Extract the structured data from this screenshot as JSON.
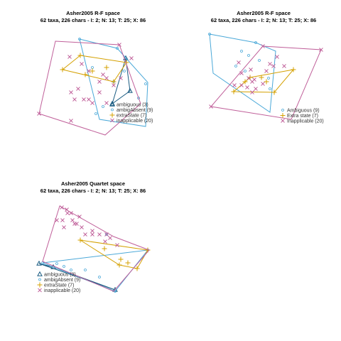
{
  "colors": {
    "ambiguous": "#1a5c82",
    "ambigAbsent": "#4aa8d8",
    "extraState": "#d4a000",
    "inapplicable": "#c0609a"
  },
  "chart_data": [
    {
      "type": "scatter",
      "title": "Asher2005 R-F space",
      "subtitle": "62 taxa, 226 chars - I: 2; N: 13; T: 25; X: 86",
      "x": [],
      "y": [],
      "grid": false,
      "legend": {
        "placement": "bottom-right",
        "entries": [
          "ambiguous (3)",
          "ambigAbsent (9)",
          "extraState (7)",
          "inapplicable (20)"
        ]
      },
      "series": [
        {
          "name": "ambiguous (3)",
          "symbol": "triangle",
          "points": [
            [
              177,
              82
            ],
            [
              183,
              128
            ],
            [
              158,
              146
            ]
          ],
          "hull": [
            [
              177,
              82
            ],
            [
              183,
              128
            ],
            [
              158,
              146
            ]
          ]
        },
        {
          "name": "ambigAbsent (9)",
          "symbol": "circle",
          "points": [
            [
              112,
              55
            ],
            [
              165,
              68
            ],
            [
              205,
              118
            ],
            [
              195,
              138
            ],
            [
              145,
              150
            ],
            [
              135,
              160
            ],
            [
              175,
              100
            ],
            [
              160,
              115
            ],
            [
              130,
              95
            ]
          ],
          "hull": [
            [
              112,
              55
            ],
            [
              165,
              68
            ],
            [
              208,
              116
            ],
            [
              205,
              178
            ],
            [
              140,
              168
            ]
          ]
        },
        {
          "name": "extraState (7)",
          "symbol": "plus",
          "points": [
            [
              88,
              98
            ],
            [
              113,
              78
            ],
            [
              178,
              88
            ],
            [
              160,
              115
            ],
            [
              130,
              100
            ],
            [
              150,
              95
            ],
            [
              120,
              105
            ]
          ],
          "hull": [
            [
              88,
              98
            ],
            [
              113,
              78
            ],
            [
              178,
              88
            ],
            [
              160,
              115
            ]
          ]
        },
        {
          "name": "inapplicable (20)",
          "symbol": "cross",
          "points": [
            [
              98,
              80
            ],
            [
              168,
              63
            ],
            [
              185,
              82
            ],
            [
              55,
              160
            ],
            [
              100,
              170
            ],
            [
              145,
              105
            ],
            [
              150,
              110
            ],
            [
              125,
              100
            ],
            [
              110,
              125
            ],
            [
              118,
              140
            ],
            [
              125,
              140
            ],
            [
              140,
              130
            ],
            [
              160,
              120
            ],
            [
              170,
              110
            ],
            [
              105,
              140
            ],
            [
              130,
              145
            ],
            [
              150,
              145
            ],
            [
              100,
              130
            ],
            [
              115,
              90
            ],
            [
              140,
              115
            ]
          ],
          "hull": [
            [
              78,
              58
            ],
            [
              168,
              63
            ],
            [
              198,
              146
            ],
            [
              148,
              190
            ],
            [
              55,
              160
            ]
          ]
        }
      ]
    },
    {
      "type": "scatter",
      "title": "Asher2005 R-F space",
      "subtitle": "62 taxa, 226 chars - I: 2; N: 13; T: 25; X: 86",
      "x": [],
      "y": [],
      "grid": false,
      "legend": {
        "placement": "bottom-right",
        "entries": [
          "Ambiguous (9)",
          "Extra state (7)",
          "Inapplicable (20)"
        ]
      },
      "series": [
        {
          "name": "Ambiguous (9)",
          "symbol": "circle",
          "points": [
            [
              295,
              48
            ],
            [
              340,
              72
            ],
            [
              345,
              100
            ],
            [
              360,
              60
            ],
            [
              378,
              110
            ],
            [
              380,
              125
            ],
            [
              332,
              93
            ],
            [
              350,
              78
            ],
            [
              365,
              85
            ]
          ],
          "hull": [
            [
              295,
              48
            ],
            [
              360,
              60
            ],
            [
              388,
              72
            ],
            [
              380,
              158
            ],
            [
              300,
              103
            ]
          ]
        },
        {
          "name": "Extra state (7)",
          "symbol": "plus",
          "points": [
            [
              329,
              129
            ],
            [
              352,
              109
            ],
            [
              368,
              109
            ],
            [
              413,
              98
            ],
            [
              386,
              130
            ],
            [
              345,
              115
            ],
            [
              375,
              115
            ]
          ],
          "hull": [
            [
              329,
              129
            ],
            [
              352,
              109
            ],
            [
              413,
              98
            ],
            [
              386,
              130
            ]
          ]
        },
        {
          "name": "Inapplicable (20)",
          "symbol": "cross",
          "points": [
            [
              370,
              65
            ],
            [
              452,
              70
            ],
            [
              297,
              150
            ],
            [
              385,
              93
            ],
            [
              390,
              80
            ],
            [
              353,
              98
            ],
            [
              350,
              110
            ],
            [
              358,
              112
            ],
            [
              355,
              115
            ],
            [
              340,
              120
            ],
            [
              340,
              103
            ],
            [
              360,
              125
            ],
            [
              370,
              118
            ],
            [
              336,
              88
            ],
            [
              348,
              123
            ],
            [
              355,
              130
            ],
            [
              375,
              100
            ],
            [
              400,
              93
            ],
            [
              330,
              120
            ],
            [
              380,
              90
            ]
          ],
          "hull": [
            [
              370,
              65
            ],
            [
              452,
              70
            ],
            [
              410,
              168
            ],
            [
              297,
              150
            ]
          ]
        }
      ]
    },
    {
      "type": "scatter",
      "title": "Asher2005 Quartet space",
      "subtitle": "62 taxa, 226 chars - I: 2; N: 13; T: 25; X: 86",
      "x": [],
      "y": [],
      "grid": false,
      "legend": {
        "placement": "bottom-left",
        "entries": [
          "ambiguous (3)",
          "ambigAbsent (9)",
          "extraState (7)",
          "inapplicable (20)"
        ]
      },
      "series": [
        {
          "name": "ambiguous (3)",
          "symbol": "triangle",
          "points": [
            [
              55,
              371
            ],
            [
              75,
              376
            ],
            [
              162,
              408
            ]
          ],
          "hull": [
            [
              55,
              371
            ],
            [
              75,
              376
            ],
            [
              162,
              408
            ]
          ]
        },
        {
          "name": "ambigAbsent (9)",
          "symbol": "circle",
          "points": [
            [
              60,
              370
            ],
            [
              80,
              371
            ],
            [
              162,
              410
            ],
            [
              208,
              352
            ],
            [
              150,
              330
            ],
            [
              100,
              380
            ],
            [
              120,
              380
            ],
            [
              90,
              375
            ],
            [
              140,
              390
            ]
          ],
          "hull": [
            [
              60,
              370
            ],
            [
              208,
              352
            ],
            [
              162,
              410
            ]
          ]
        },
        {
          "name": "extraState (7)",
          "symbol": "plus",
          "points": [
            [
              113,
              338
            ],
            [
              208,
              352
            ],
            [
              193,
              378
            ],
            [
              168,
              373
            ],
            [
              147,
              350
            ],
            [
              170,
              365
            ],
            [
              180,
              370
            ]
          ],
          "hull": [
            [
              113,
              338
            ],
            [
              208,
              352
            ],
            [
              193,
              378
            ],
            [
              168,
              373
            ]
          ]
        },
        {
          "name": "inapplicable (20)",
          "symbol": "cross",
          "points": [
            [
              87,
              292
            ],
            [
              94,
              295
            ],
            [
              102,
              310
            ],
            [
              108,
              315
            ],
            [
              112,
              305
            ],
            [
              100,
              300
            ],
            [
              130,
              330
            ],
            [
              148,
              340
            ],
            [
              155,
              335
            ],
            [
              165,
              345
            ],
            [
              130,
              325
            ],
            [
              105,
              315
            ],
            [
              95,
              300
            ],
            [
              88,
              310
            ],
            [
              115,
              320
            ],
            [
              140,
              330
            ],
            [
              150,
              330
            ],
            [
              80,
              310
            ],
            [
              90,
              320
            ],
            [
              120,
              330
            ]
          ],
          "hull": [
            [
              84,
              290
            ],
            [
              160,
              333
            ],
            [
              210,
              352
            ],
            [
              160,
              410
            ],
            [
              60,
              368
            ]
          ]
        }
      ]
    }
  ]
}
